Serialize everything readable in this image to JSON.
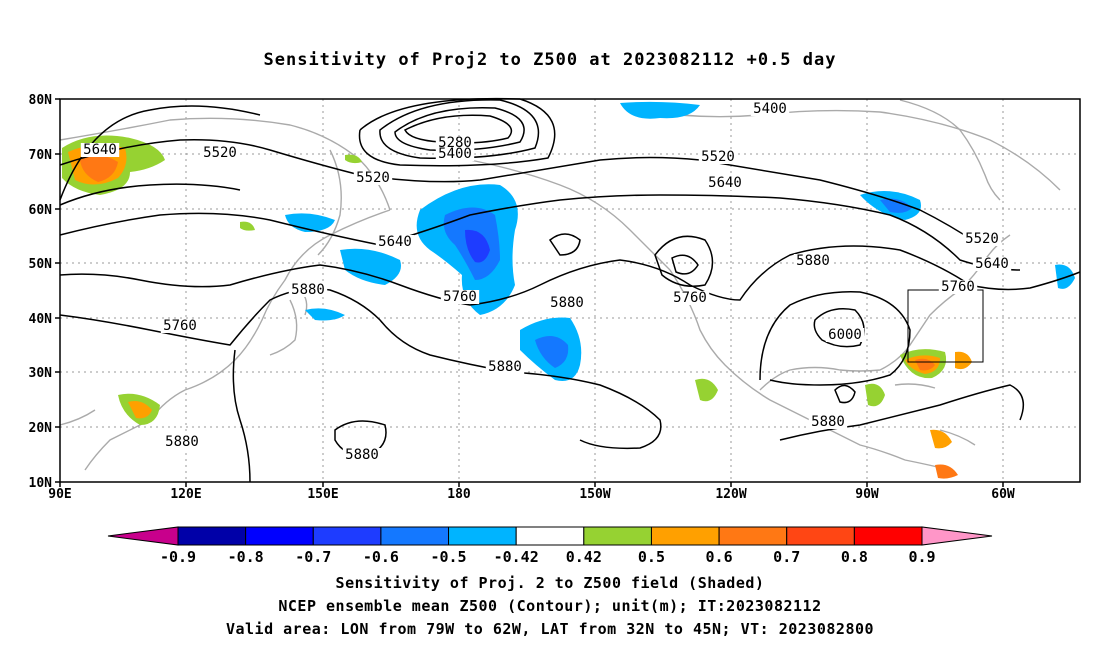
{
  "title": "Sensitivity of Proj2 to Z500 at 2023082112 +0.5 day",
  "lat_labels": [
    "80N",
    "70N",
    "60N",
    "50N",
    "40N",
    "30N",
    "20N",
    "10N"
  ],
  "lon_labels": [
    "90E",
    "120E",
    "150E",
    "180",
    "150W",
    "120W",
    "90W",
    "60W"
  ],
  "contour_labels": [
    {
      "text": "5640"
    },
    {
      "text": "5520"
    },
    {
      "text": "5520"
    },
    {
      "text": "5280"
    },
    {
      "text": "5400"
    },
    {
      "text": "5400"
    },
    {
      "text": "5520"
    },
    {
      "text": "5640"
    },
    {
      "text": "5640"
    },
    {
      "text": "5760"
    },
    {
      "text": "5880"
    },
    {
      "text": "5760"
    },
    {
      "text": "5880"
    },
    {
      "text": "5880"
    },
    {
      "text": "5760"
    },
    {
      "text": "5880"
    },
    {
      "text": "6000"
    },
    {
      "text": "5520"
    },
    {
      "text": "5640"
    },
    {
      "text": "5760"
    },
    {
      "text": "5880"
    },
    {
      "text": "5880"
    },
    {
      "text": "5880"
    }
  ],
  "colorbar": {
    "labels": [
      "-0.9",
      "-0.8",
      "-0.7",
      "-0.6",
      "-0.5",
      "-0.42",
      "0.42",
      "0.5",
      "0.6",
      "0.7",
      "0.8",
      "0.9"
    ],
    "colors": [
      "#0000a8",
      "#0000ff",
      "#1e3cff",
      "#1478ff",
      "#00b4ff",
      "#ffffff",
      "#96d232",
      "#ffa000",
      "#ff7814",
      "#ff4614",
      "#ff0000"
    ],
    "low_color": "#c8008c",
    "high_color": "#ff96c8"
  },
  "captions": [
    "Sensitivity of Proj. 2 to Z500 field (Shaded)",
    "NCEP ensemble mean Z500 (Contour); unit(m); IT:2023082112",
    "Valid area: LON from 79W to 62W, LAT from 32N to 45N; VT: 2023082800"
  ]
}
